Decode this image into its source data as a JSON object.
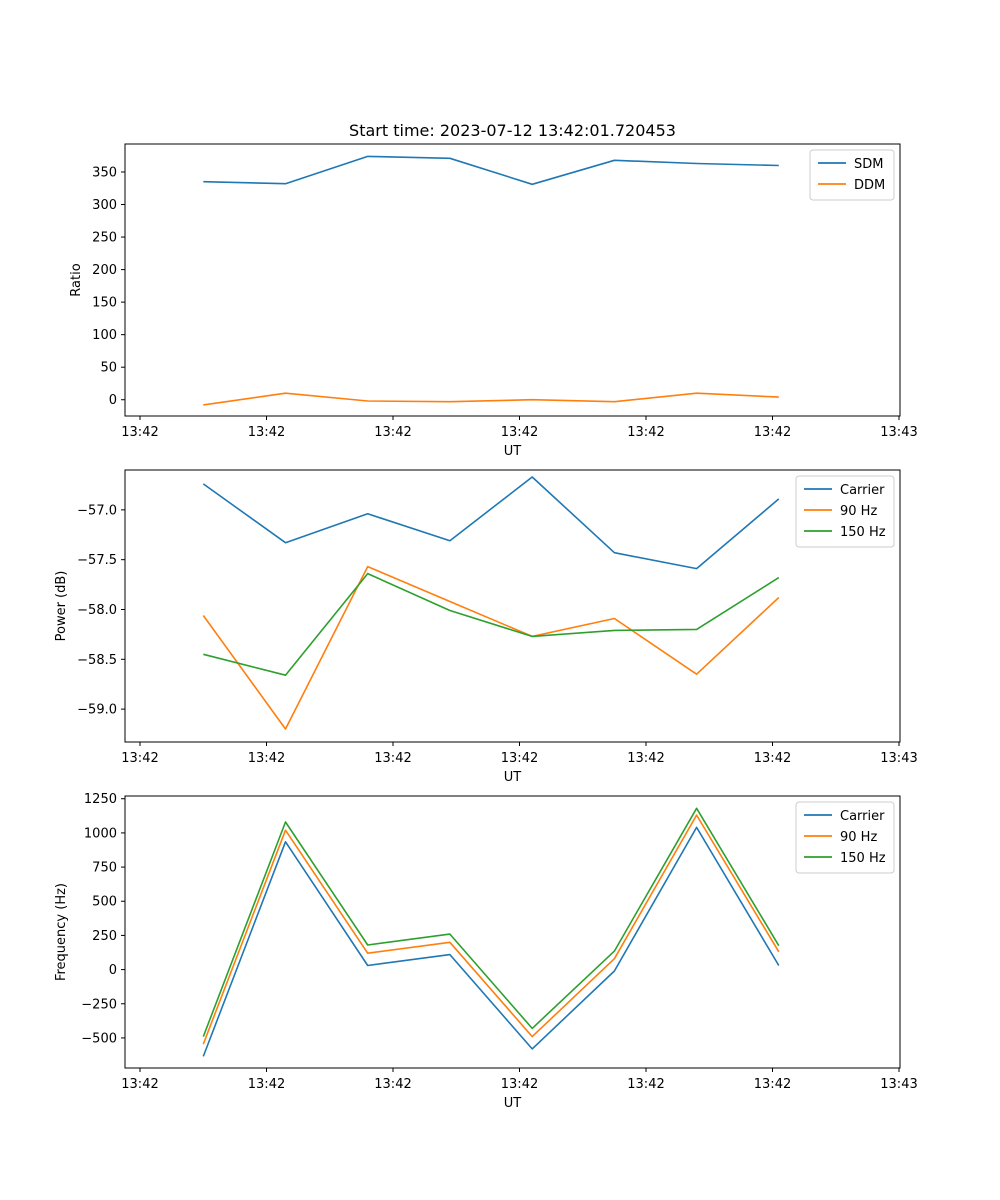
{
  "figure_title": "Start time: 2023-07-12 13:42:01.720453",
  "chart_data": [
    {
      "type": "line",
      "title": "Start time: 2023-07-12 13:42:01.720453",
      "xlabel": "UT",
      "ylabel": "Ratio",
      "x_range": [
        -0.5,
        5.5
      ],
      "x_ticks": [
        {
          "v": -0.5,
          "label": "13:42"
        },
        {
          "v": 0.5,
          "label": "13:42"
        },
        {
          "v": 1.5,
          "label": "13:42"
        },
        {
          "v": 2.5,
          "label": "13:42"
        },
        {
          "v": 3.5,
          "label": "13:42"
        },
        {
          "v": 4.5,
          "label": "13:42"
        },
        {
          "v": 5.5,
          "label": "13:43"
        }
      ],
      "ylim": [
        -25,
        393
      ],
      "y_ticks": [
        0,
        50,
        100,
        150,
        200,
        250,
        300,
        350
      ],
      "x": [
        0.0,
        0.65,
        1.3,
        1.95,
        2.6,
        3.25,
        3.9,
        4.55
      ],
      "legend_position": "top-right",
      "series": [
        {
          "name": "SDM",
          "color": "#1f77b4",
          "values": [
            335,
            332,
            374,
            371,
            331,
            368,
            363,
            360
          ]
        },
        {
          "name": "DDM",
          "color": "#ff7f0e",
          "values": [
            -8,
            10,
            -2,
            -3,
            0,
            -3,
            10,
            4
          ]
        }
      ]
    },
    {
      "type": "line",
      "xlabel": "UT",
      "ylabel": "Power (dB)",
      "x_range": [
        -0.5,
        5.5
      ],
      "x_ticks": [
        {
          "v": -0.5,
          "label": "13:42"
        },
        {
          "v": 0.5,
          "label": "13:42"
        },
        {
          "v": 1.5,
          "label": "13:42"
        },
        {
          "v": 2.5,
          "label": "13:42"
        },
        {
          "v": 3.5,
          "label": "13:42"
        },
        {
          "v": 4.5,
          "label": "13:42"
        },
        {
          "v": 5.5,
          "label": "13:43"
        }
      ],
      "ylim": [
        -59.33,
        -56.6
      ],
      "y_ticks": [
        -59.0,
        -58.5,
        -58.0,
        -57.5,
        -57.0
      ],
      "y_tick_labels": [
        "−59.0",
        "−58.5",
        "−58.0",
        "−57.5",
        "−57.0"
      ],
      "x": [
        0.0,
        0.65,
        1.3,
        1.95,
        2.6,
        3.25,
        3.9,
        4.55
      ],
      "legend_position": "top-right",
      "series": [
        {
          "name": "Carrier",
          "color": "#1f77b4",
          "values": [
            -56.74,
            -57.33,
            -57.04,
            -57.31,
            -56.67,
            -57.43,
            -57.59,
            -56.89
          ]
        },
        {
          "name": "90 Hz",
          "color": "#ff7f0e",
          "values": [
            -58.06,
            -59.2,
            -57.57,
            -57.92,
            -58.27,
            -58.09,
            -58.65,
            -57.88
          ]
        },
        {
          "name": "150 Hz",
          "color": "#2ca02c",
          "values": [
            -58.45,
            -58.66,
            -57.64,
            -58.01,
            -58.27,
            -58.21,
            -58.2,
            -57.68
          ]
        }
      ]
    },
    {
      "type": "line",
      "xlabel": "UT",
      "ylabel": "Frequency (Hz)",
      "x_range": [
        -0.5,
        5.5
      ],
      "x_ticks": [
        {
          "v": -0.5,
          "label": "13:42"
        },
        {
          "v": 0.5,
          "label": "13:42"
        },
        {
          "v": 1.5,
          "label": "13:42"
        },
        {
          "v": 2.5,
          "label": "13:42"
        },
        {
          "v": 3.5,
          "label": "13:42"
        },
        {
          "v": 4.5,
          "label": "13:42"
        },
        {
          "v": 5.5,
          "label": "13:43"
        }
      ],
      "ylim": [
        -720,
        1270
      ],
      "y_ticks": [
        -500,
        -250,
        0,
        250,
        500,
        750,
        1000,
        1250
      ],
      "y_tick_labels": [
        "−500",
        "−250",
        "0",
        "250",
        "500",
        "750",
        "1000",
        "1250"
      ],
      "x": [
        0.0,
        0.65,
        1.3,
        1.95,
        2.6,
        3.25,
        3.9,
        4.55
      ],
      "legend_position": "top-right",
      "series": [
        {
          "name": "Carrier",
          "color": "#1f77b4",
          "values": [
            -635,
            935,
            30,
            110,
            -580,
            -10,
            1040,
            30
          ]
        },
        {
          "name": "90 Hz",
          "color": "#ff7f0e",
          "values": [
            -545,
            1020,
            120,
            200,
            -490,
            80,
            1130,
            130
          ]
        },
        {
          "name": "150 Hz",
          "color": "#2ca02c",
          "values": [
            -490,
            1080,
            180,
            260,
            -430,
            135,
            1180,
            175
          ]
        }
      ]
    }
  ]
}
